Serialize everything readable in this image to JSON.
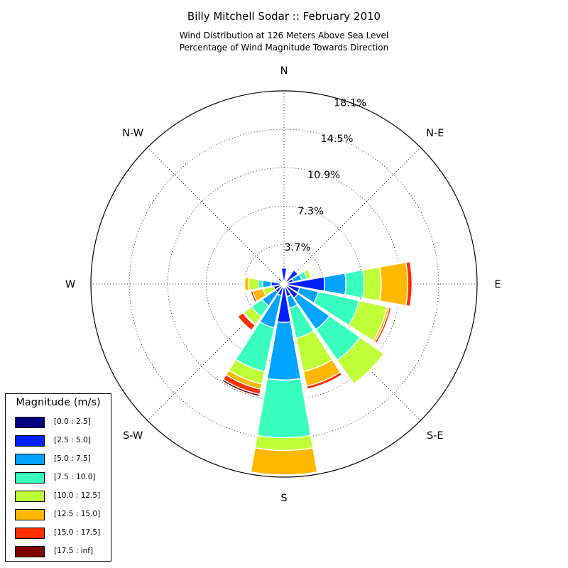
{
  "chart_data": {
    "type": "windrose",
    "title": "Billy Mitchell Sodar :: February 2010",
    "subtitle_lines": [
      "Wind Distribution at 126 Meters Above Sea Level",
      "Percentage of Wind Magnitude Towards Direction"
    ],
    "direction_labels": [
      "N",
      "N-E",
      "E",
      "S-E",
      "S",
      "S-W",
      "W",
      "N-W"
    ],
    "radial_max": 18.1,
    "radial_ticks": [
      3.7,
      7.3,
      10.9,
      14.5,
      18.1
    ],
    "radial_tick_labels": [
      "3.7%",
      "7.3%",
      "10.9%",
      "14.5%",
      "18.1%"
    ],
    "legend_title": "Magnitude (m/s)",
    "bins": [
      {
        "name": "[0.0 : 2.5]",
        "color": "#000080"
      },
      {
        "name": "[2.5 : 5.0]",
        "color": "#0020ff"
      },
      {
        "name": "[5.0 : 7.5]",
        "color": "#00a4ff"
      },
      {
        "name": "[7.5 : 10.0]",
        "color": "#38ffbe"
      },
      {
        "name": "[10.0 : 12.5]",
        "color": "#beff38"
      },
      {
        "name": "[12.5 : 15.0]",
        "color": "#ffb800"
      },
      {
        "name": "[15.0 : 17.5]",
        "color": "#ff3000"
      },
      {
        "name": "[17.5 : inf]",
        "color": "#800000"
      }
    ],
    "sector_width_deg": 22.5,
    "sectors": [
      {
        "direction_deg": 0,
        "cumulative": [
          0.3,
          1.5,
          1.5,
          1.5,
          1.5,
          1.5,
          1.5,
          1.5
        ]
      },
      {
        "direction_deg": 22.5,
        "cumulative": [
          0.2,
          0.5,
          0.5,
          0.5,
          0.5,
          0.5,
          0.5,
          0.5
        ]
      },
      {
        "direction_deg": 45,
        "cumulative": [
          0.2,
          1.6,
          1.6,
          1.6,
          1.6,
          1.6,
          1.6,
          1.6
        ]
      },
      {
        "direction_deg": 67.5,
        "cumulative": [
          0.2,
          0.9,
          1.7,
          2.2,
          2.6,
          2.7,
          2.7,
          2.7
        ]
      },
      {
        "direction_deg": 90,
        "cumulative": [
          0.3,
          3.8,
          5.8,
          7.5,
          9.1,
          11.6,
          12.0,
          12.0
        ]
      },
      {
        "direction_deg": 112.5,
        "cumulative": [
          0.3,
          1.5,
          3.3,
          7.2,
          9.9,
          10.1,
          10.3,
          10.3
        ]
      },
      {
        "direction_deg": 135,
        "cumulative": [
          0.3,
          1.6,
          5.2,
          8.7,
          11.4,
          11.5,
          11.6,
          11.6
        ]
      },
      {
        "direction_deg": 157.5,
        "cumulative": [
          0.3,
          1.2,
          2.3,
          5.2,
          8.4,
          9.8,
          10.1,
          10.1
        ]
      },
      {
        "direction_deg": 180,
        "cumulative": [
          0.3,
          3.6,
          9.0,
          14.4,
          15.6,
          17.9,
          17.9,
          17.9
        ]
      },
      {
        "direction_deg": 202.5,
        "cumulative": [
          0.3,
          1.1,
          4.2,
          8.4,
          9.6,
          10.1,
          10.6,
          10.8
        ]
      },
      {
        "direction_deg": 225,
        "cumulative": [
          0.3,
          1.0,
          2.5,
          3.7,
          4.6,
          4.7,
          5.3,
          5.3
        ]
      },
      {
        "direction_deg": 247.5,
        "cumulative": [
          0.2,
          1.0,
          1.0,
          1.0,
          2.0,
          3.0,
          3.2,
          3.2
        ]
      },
      {
        "direction_deg": 270,
        "cumulative": [
          0.3,
          1.2,
          2.0,
          2.4,
          3.3,
          3.7,
          3.7,
          3.7
        ]
      },
      {
        "direction_deg": 292.5,
        "cumulative": [
          0.2,
          0.4,
          0.6,
          0.8,
          0.9,
          1.0,
          1.0,
          1.0
        ]
      },
      {
        "direction_deg": 315,
        "cumulative": [
          0.2,
          0.7,
          0.7,
          0.7,
          0.7,
          0.7,
          0.7,
          0.7
        ]
      },
      {
        "direction_deg": 337.5,
        "cumulative": [
          0.2,
          0.4,
          0.4,
          0.4,
          0.4,
          0.4,
          0.4,
          0.4
        ]
      }
    ],
    "grid": true
  }
}
